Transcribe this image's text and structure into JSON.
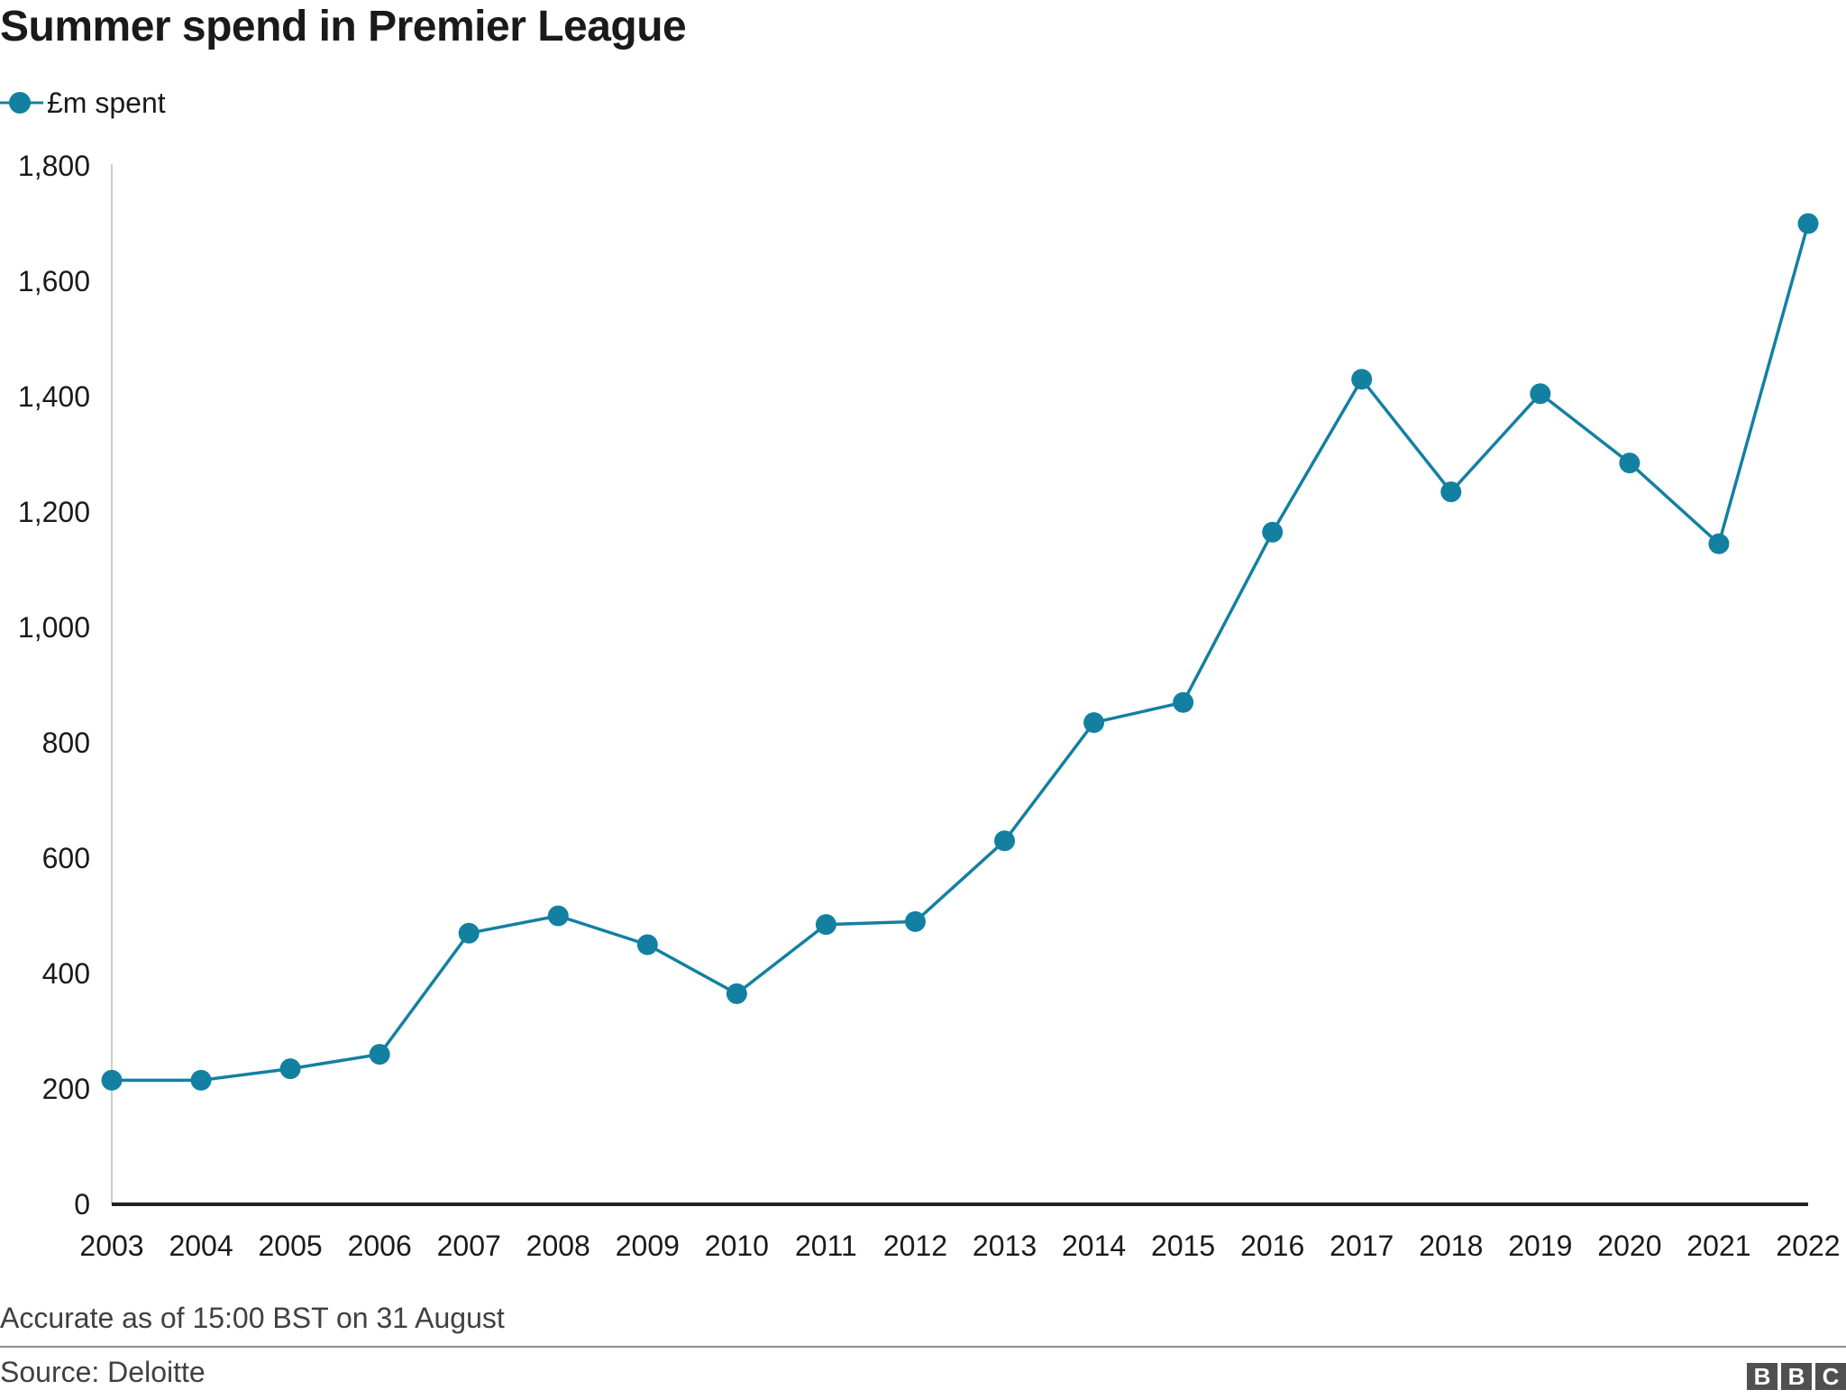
{
  "title": "Summer spend in Premier League",
  "legend": {
    "label": "£m spent"
  },
  "colors": {
    "series": "#1380a1",
    "axis": "#222222",
    "gridline": "#cccccc"
  },
  "footnote": "Accurate as of 15:00 BST on 31 August",
  "source": "Source: Deloitte",
  "logo": {
    "letters": [
      "B",
      "B",
      "C"
    ]
  },
  "chart_data": {
    "type": "line",
    "title": "Summer spend in Premier League",
    "categories": [
      "2003",
      "2004",
      "2005",
      "2006",
      "2007",
      "2008",
      "2009",
      "2010",
      "2011",
      "2012",
      "2013",
      "2014",
      "2015",
      "2016",
      "2017",
      "2018",
      "2019",
      "2020",
      "2021",
      "2022"
    ],
    "series": [
      {
        "name": "£m spent",
        "values": [
          215,
          215,
          235,
          260,
          470,
          500,
          450,
          365,
          485,
          490,
          630,
          835,
          870,
          1165,
          1430,
          1235,
          1405,
          1285,
          1145,
          1700
        ]
      }
    ],
    "yticks": [
      {
        "value": 0,
        "label": "0"
      },
      {
        "value": 200,
        "label": "200"
      },
      {
        "value": 400,
        "label": "400"
      },
      {
        "value": 600,
        "label": "600"
      },
      {
        "value": 800,
        "label": "800"
      },
      {
        "value": 1000,
        "label": "1,000"
      },
      {
        "value": 1200,
        "label": "1,200"
      },
      {
        "value": 1400,
        "label": "1,400"
      },
      {
        "value": 1600,
        "label": "1,600"
      },
      {
        "value": 1800,
        "label": "1,800"
      }
    ],
    "ylim": [
      0,
      1800
    ],
    "grid": false,
    "legend_position": "top-left",
    "xlabel": "",
    "ylabel": ""
  }
}
